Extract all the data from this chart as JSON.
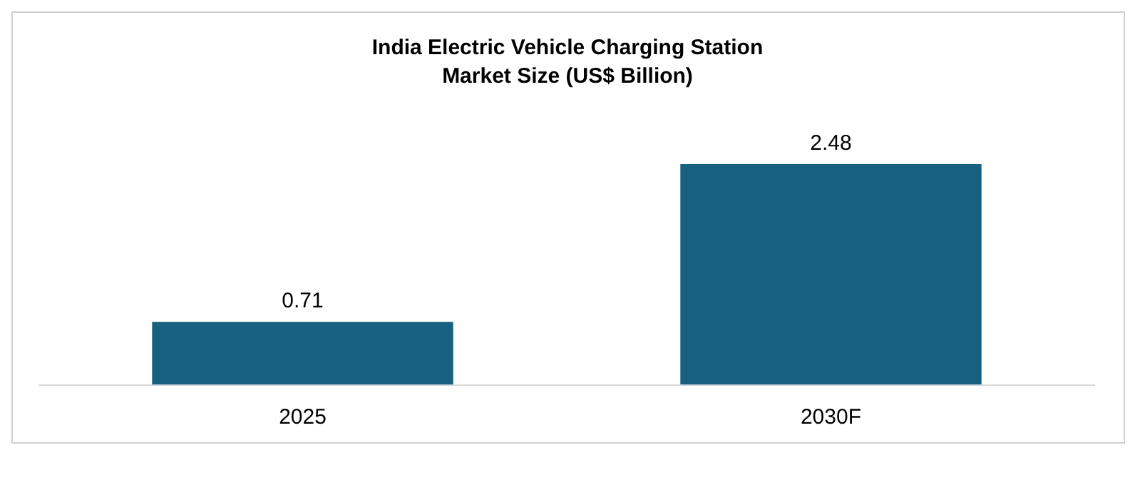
{
  "chart_data": {
    "type": "bar",
    "title": "India Electric Vehicle Charging Station\nMarket Size (US$ Billion)",
    "categories": [
      "2025",
      "2030F"
    ],
    "values": [
      0.71,
      2.48
    ],
    "color": "#17607f",
    "data_labels": true
  }
}
